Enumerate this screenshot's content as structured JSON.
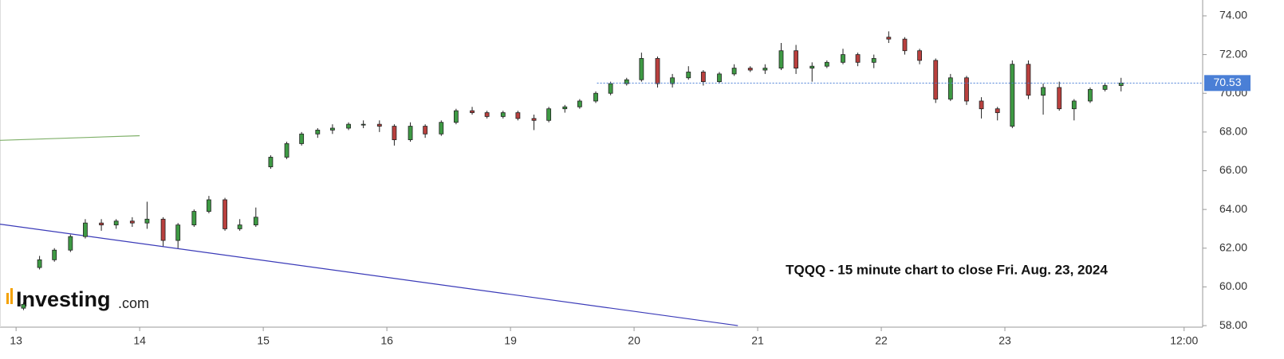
{
  "chart_data": {
    "type": "candlestick",
    "annotation": "TQQQ - 15 minute chart to close Fri. Aug. 23, 2024",
    "logo": {
      "name": "Investing",
      "suffix": ".com"
    },
    "up_color": "#3e9a44",
    "down_color": "#b9403e",
    "xlim": [
      -0.13,
      9.6
    ],
    "ylim": [
      57.92,
      74.82
    ],
    "xticks": [
      {
        "value": 0,
        "label": "13"
      },
      {
        "value": 1,
        "label": "14"
      },
      {
        "value": 2,
        "label": "15"
      },
      {
        "value": 3,
        "label": "16"
      },
      {
        "value": 4,
        "label": "19"
      },
      {
        "value": 5,
        "label": "20"
      },
      {
        "value": 6,
        "label": "21"
      },
      {
        "value": 7,
        "label": "22"
      },
      {
        "value": 8,
        "label": "23"
      },
      {
        "value": 9.45,
        "label": "12:00"
      }
    ],
    "yticks": [
      {
        "value": 58,
        "label": "58.00"
      },
      {
        "value": 60,
        "label": "60.00"
      },
      {
        "value": 62,
        "label": "62.00"
      },
      {
        "value": 64,
        "label": "64.00"
      },
      {
        "value": 66,
        "label": "66.00"
      },
      {
        "value": 68,
        "label": "68.00"
      },
      {
        "value": 70,
        "label": "70.00"
      },
      {
        "value": 72,
        "label": "72.00"
      },
      {
        "value": 74,
        "label": "74.00"
      }
    ],
    "last_price": 70.53,
    "last_price_color": "#4a7fd6",
    "x": [
      0.06,
      0.19,
      0.31,
      0.44,
      0.56,
      0.69,
      0.81,
      0.94,
      1.06,
      1.19,
      1.31,
      1.44,
      1.56,
      1.69,
      1.81,
      1.94,
      2.06,
      2.19,
      2.31,
      2.44,
      2.56,
      2.69,
      2.81,
      2.94,
      3.06,
      3.19,
      3.31,
      3.44,
      3.56,
      3.69,
      3.81,
      3.94,
      4.06,
      4.19,
      4.31,
      4.44,
      4.56,
      4.69,
      4.81,
      4.94,
      5.06,
      5.19,
      5.31,
      5.44,
      5.56,
      5.69,
      5.81,
      5.94,
      6.06,
      6.19,
      6.31,
      6.44,
      6.56,
      6.69,
      6.81,
      6.94,
      7.06,
      7.19,
      7.31,
      7.44,
      7.56,
      7.69,
      7.81,
      7.94,
      8.06,
      8.19,
      8.31,
      8.44,
      8.56,
      8.69,
      8.81,
      8.94
    ],
    "open": [
      58.9,
      61.0,
      61.4,
      61.9,
      62.6,
      63.3,
      63.2,
      63.4,
      63.3,
      63.5,
      62.4,
      63.2,
      63.9,
      64.5,
      63.0,
      63.2,
      66.2,
      66.7,
      67.4,
      67.9,
      68.1,
      68.2,
      68.4,
      68.4,
      68.3,
      67.6,
      68.3,
      67.9,
      68.5,
      69.1,
      69.0,
      68.8,
      69.0,
      68.7,
      68.6,
      69.2,
      69.3,
      69.6,
      70.0,
      70.5,
      70.7,
      71.8,
      70.5,
      70.8,
      71.1,
      70.6,
      71.0,
      71.3,
      71.2,
      71.3,
      72.2,
      71.3,
      71.4,
      71.6,
      72.0,
      71.6,
      72.9,
      72.8,
      72.2,
      71.7,
      69.7,
      70.8,
      69.6,
      69.2,
      68.3,
      71.5,
      69.9,
      70.3,
      69.2,
      69.6,
      70.2,
      70.4
    ],
    "high": [
      59.2,
      61.6,
      62.0,
      62.7,
      63.5,
      63.5,
      63.5,
      63.6,
      64.4,
      63.6,
      63.3,
      64.0,
      64.7,
      64.6,
      63.5,
      64.1,
      66.8,
      67.5,
      68.0,
      68.2,
      68.4,
      68.5,
      68.6,
      68.6,
      68.4,
      68.5,
      68.4,
      68.6,
      69.2,
      69.3,
      69.1,
      69.1,
      69.1,
      68.9,
      69.3,
      69.4,
      69.7,
      70.1,
      70.6,
      70.8,
      72.1,
      71.9,
      71.0,
      71.4,
      71.2,
      71.1,
      71.5,
      71.4,
      71.5,
      72.6,
      72.5,
      71.6,
      71.7,
      72.3,
      72.1,
      72.0,
      73.2,
      72.9,
      72.3,
      71.8,
      71.0,
      70.9,
      69.8,
      69.3,
      71.7,
      71.7,
      70.5,
      70.6,
      69.7,
      70.3,
      70.5,
      70.8
    ],
    "low": [
      58.8,
      60.9,
      61.3,
      61.8,
      62.5,
      62.9,
      63.0,
      63.1,
      63.0,
      62.1,
      62.0,
      63.1,
      63.8,
      62.9,
      62.9,
      63.1,
      66.1,
      66.6,
      67.3,
      67.7,
      67.9,
      68.1,
      68.2,
      68.0,
      67.3,
      67.5,
      67.7,
      67.8,
      68.4,
      68.9,
      68.7,
      68.7,
      68.6,
      68.1,
      68.5,
      69.0,
      69.2,
      69.5,
      69.9,
      70.4,
      70.6,
      70.3,
      70.3,
      70.7,
      70.4,
      70.5,
      70.9,
      71.1,
      71.0,
      71.2,
      71.0,
      70.6,
      71.3,
      71.5,
      71.4,
      71.3,
      72.6,
      72.0,
      71.5,
      69.5,
      69.6,
      69.4,
      68.7,
      68.6,
      68.2,
      69.7,
      68.9,
      69.1,
      68.6,
      69.5,
      70.1,
      70.1
    ],
    "close": [
      59.1,
      61.4,
      61.9,
      62.6,
      63.3,
      63.2,
      63.4,
      63.3,
      63.5,
      62.4,
      63.2,
      63.9,
      64.5,
      63.0,
      63.2,
      63.6,
      66.7,
      67.4,
      67.9,
      68.1,
      68.2,
      68.4,
      68.4,
      68.3,
      67.6,
      68.3,
      67.9,
      68.5,
      69.1,
      69.0,
      68.8,
      69.0,
      68.7,
      68.6,
      69.2,
      69.3,
      69.6,
      70.0,
      70.5,
      70.7,
      71.8,
      70.5,
      70.8,
      71.1,
      70.6,
      71.0,
      71.3,
      71.2,
      71.3,
      72.2,
      71.3,
      71.4,
      71.6,
      72.0,
      71.6,
      71.8,
      72.8,
      72.2,
      71.7,
      69.7,
      70.8,
      69.6,
      69.2,
      69.0,
      71.5,
      69.9,
      70.3,
      69.2,
      69.6,
      70.2,
      70.4,
      70.53
    ],
    "lines": [
      {
        "color": "#7fb069",
        "x": [
          -0.13,
          1.0
        ],
        "values": [
          67.57,
          67.81
        ]
      },
      {
        "color": "#3a3ab8",
        "x": [
          -0.13,
          5.84
        ],
        "values": [
          63.24,
          58.0
        ]
      }
    ]
  }
}
